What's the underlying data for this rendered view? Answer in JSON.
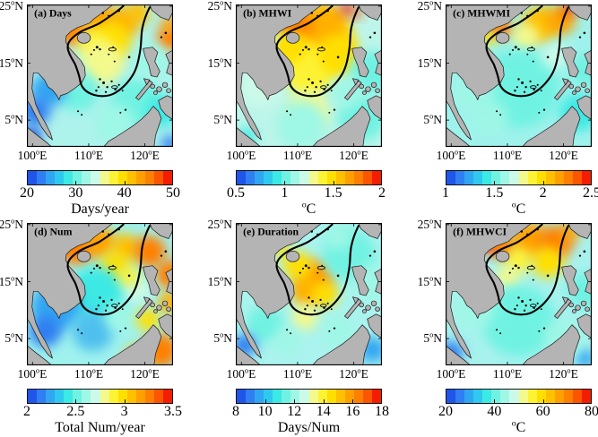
{
  "figure": {
    "background": "#ffffff",
    "land_color": "#b4b4b4",
    "coast_color": "#1c1c1c",
    "contour_color": "#000000"
  },
  "colormap": [
    "#1f55e8",
    "#2f7ef2",
    "#30a5f2",
    "#2fc9f0",
    "#3ce9e4",
    "#6ff2e2",
    "#9ff7e6",
    "#ccfae9",
    "#f4f98c",
    "#fdf335",
    "#ffdf00",
    "#ffc000",
    "#ffa000",
    "#ff7f00",
    "#fb5500",
    "#f51d00"
  ],
  "axes": {
    "lat_ticks": [
      "25°N",
      "15°N",
      "5°N"
    ],
    "lon_ticks": [
      "100°E",
      "110°E",
      "120°E"
    ]
  },
  "chart_data": [
    {
      "type": "heatmap",
      "id": "a",
      "title": "(a) Days",
      "cb_ticks": [
        "20",
        "30",
        "40",
        "50"
      ],
      "cb_range": [
        20,
        50
      ],
      "cb_label": "Days/year",
      "pattern": "High MHW days (40-50) in northern SCS near Hainan, south China coast and NE of Luzon; moderate (30-35) mid basin; low (20-28) in Gulf of Thailand, Malacca area and southeastern seas",
      "base": "#aef2ec",
      "blobs": [
        [
          62,
          34,
          24,
          "#ff8000"
        ],
        [
          100,
          22,
          24,
          "#ffa000"
        ],
        [
          132,
          26,
          22,
          "#ffb000"
        ],
        [
          152,
          12,
          16,
          "#ffc000"
        ],
        [
          115,
          52,
          28,
          "#ffdf00"
        ],
        [
          90,
          55,
          20,
          "#fdf335"
        ],
        [
          196,
          48,
          18,
          "#ff8000"
        ],
        [
          196,
          28,
          12,
          "#ffa000"
        ],
        [
          103,
          82,
          30,
          "#f4f98c"
        ],
        [
          70,
          122,
          28,
          "#6ff2e2"
        ],
        [
          30,
          120,
          24,
          "#30a5f2"
        ],
        [
          12,
          150,
          20,
          "#2f7ef2"
        ],
        [
          6,
          186,
          14,
          "#1f55e8"
        ],
        [
          150,
          140,
          36,
          "#6ff2e2"
        ],
        [
          185,
          150,
          22,
          "#3ce9e4"
        ],
        [
          196,
          196,
          12,
          "#2f7ef2"
        ],
        [
          120,
          168,
          28,
          "#9ff7e6"
        ],
        [
          60,
          95,
          18,
          "#9ff7e6"
        ],
        [
          170,
          80,
          25,
          "#9ff7e6"
        ]
      ]
    },
    {
      "type": "heatmap",
      "id": "b",
      "title": "(b) MHWI",
      "cb_ticks": [
        "0.5",
        "1",
        "1.5",
        "2"
      ],
      "cb_range": [
        0.5,
        2
      ],
      "cb_label": "°C",
      "pattern": "Mean intensity high (1.5-2 °C, red spots near Hainan and Taiwan Strait) across northern SCS; ~1.2-1.5 °C central basin; ~1 °C in southern shelf and seas east of the Philippines",
      "base": "#bdf5ea",
      "blobs": [
        [
          112,
          55,
          50,
          "#ffdf00"
        ],
        [
          120,
          32,
          32,
          "#ffb000"
        ],
        [
          85,
          28,
          20,
          "#ff7f00"
        ],
        [
          68,
          26,
          9,
          "#f51d00"
        ],
        [
          152,
          6,
          9,
          "#f51d00"
        ],
        [
          166,
          12,
          7,
          "#fb5500"
        ],
        [
          100,
          92,
          36,
          "#fdf335"
        ],
        [
          75,
          60,
          22,
          "#ffdf00"
        ],
        [
          140,
          70,
          28,
          "#ffdf00"
        ],
        [
          100,
          150,
          28,
          "#f4f98c"
        ],
        [
          90,
          170,
          35,
          "#9ff7e6"
        ],
        [
          35,
          115,
          28,
          "#ccfae9"
        ],
        [
          186,
          95,
          30,
          "#6ff2e2"
        ],
        [
          172,
          160,
          32,
          "#6ff2e2"
        ],
        [
          15,
          186,
          13,
          "#3ce9e4"
        ],
        [
          150,
          125,
          22,
          "#9ff7e6"
        ]
      ]
    },
    {
      "type": "heatmap",
      "id": "c",
      "title": "(c) MHWMI",
      "cb_ticks": [
        "1",
        "1.5",
        "2",
        "2.5"
      ],
      "cb_range": [
        1,
        2.5
      ],
      "cb_label": "°C",
      "pattern": "Maximum intensity mostly 1.4-1.7 °C (cyan); >2 °C band along the north: red patches in Gulf of Tonkin coast and near Taiwan, orange-yellow along NE slope",
      "base": "#9ff2ec",
      "blobs": [
        [
          65,
          27,
          11,
          "#f51d00"
        ],
        [
          78,
          34,
          14,
          "#ff7f00"
        ],
        [
          58,
          45,
          12,
          "#ffdf00"
        ],
        [
          130,
          28,
          26,
          "#ffc000"
        ],
        [
          158,
          22,
          20,
          "#ffa000"
        ],
        [
          170,
          5,
          9,
          "#f51d00"
        ],
        [
          110,
          45,
          18,
          "#f4f98c"
        ],
        [
          100,
          118,
          55,
          "#6ff2e2"
        ],
        [
          40,
          122,
          28,
          "#9ff7e6"
        ],
        [
          182,
          152,
          26,
          "#3ce9e4"
        ],
        [
          192,
          92,
          22,
          "#6ff2e2"
        ],
        [
          150,
          72,
          18,
          "#ccfae9"
        ],
        [
          60,
          160,
          25,
          "#9ff7e6"
        ]
      ]
    },
    {
      "type": "heatmap",
      "id": "d",
      "title": "(d) Num",
      "cb_ticks": [
        "2",
        "2.5",
        "3",
        "3.5"
      ],
      "cb_range": [
        2,
        3.5
      ],
      "cb_label": "Total Num/year",
      "pattern": "About 3-3.5 events/yr in northern SCS, east of Luzon and SE corner; 2-2.5 events/yr in western/central basin and Gulf of Thailand",
      "base": "#9ff2ee",
      "blobs": [
        [
          68,
          33,
          26,
          "#ff8000"
        ],
        [
          100,
          27,
          22,
          "#ffa000"
        ],
        [
          135,
          35,
          20,
          "#ffc000"
        ],
        [
          168,
          40,
          22,
          "#ff8000"
        ],
        [
          196,
          72,
          20,
          "#ff8000"
        ],
        [
          196,
          112,
          16,
          "#ffb000"
        ],
        [
          120,
          60,
          20,
          "#ffdf00"
        ],
        [
          95,
          102,
          40,
          "#3ce9e4"
        ],
        [
          40,
          118,
          34,
          "#30a5f2"
        ],
        [
          25,
          152,
          22,
          "#2f7ef2"
        ],
        [
          90,
          152,
          28,
          "#4fc0ee"
        ],
        [
          183,
          179,
          24,
          "#ff8000"
        ],
        [
          150,
          188,
          16,
          "#ffc000"
        ],
        [
          127,
          132,
          20,
          "#9ff7e6"
        ],
        [
          152,
          95,
          18,
          "#ccfae9"
        ],
        [
          166,
          136,
          16,
          "#ffdf00"
        ],
        [
          140,
          75,
          14,
          "#fdf335"
        ]
      ]
    },
    {
      "type": "heatmap",
      "id": "e",
      "title": "(e) Duration",
      "cb_ticks": [
        "8",
        "10",
        "12",
        "14",
        "16",
        "18"
      ],
      "cb_range": [
        8,
        18
      ],
      "cb_label": "Days/Num",
      "pattern": "Longest durations (14-16 days) in central SCS off Vietnam; 10-12 days over most shelves; shortest (8-10 days) in far SW and SE corners",
      "base": "#aaf3ee",
      "blobs": [
        [
          108,
          78,
          26,
          "#ff9800"
        ],
        [
          98,
          96,
          22,
          "#ffb000"
        ],
        [
          85,
          60,
          20,
          "#ffdf00"
        ],
        [
          122,
          100,
          18,
          "#ffdf00"
        ],
        [
          65,
          40,
          11,
          "#ffdf00"
        ],
        [
          95,
          132,
          18,
          "#f4f98c"
        ],
        [
          50,
          100,
          16,
          "#f4f98c"
        ],
        [
          155,
          45,
          36,
          "#6ff2e2"
        ],
        [
          186,
          85,
          25,
          "#9ff7e6"
        ],
        [
          40,
          142,
          25,
          "#6ff2e2"
        ],
        [
          12,
          172,
          16,
          "#2f7ef2"
        ],
        [
          187,
          178,
          18,
          "#30a5f2"
        ],
        [
          140,
          152,
          22,
          "#9ff7e6"
        ],
        [
          70,
          166,
          18,
          "#9ff7e6"
        ],
        [
          140,
          20,
          18,
          "#9ff7e6"
        ]
      ]
    },
    {
      "type": "heatmap",
      "id": "f",
      "title": "(f) MHWCI",
      "cb_ticks": [
        "20",
        "40",
        "60",
        "80"
      ],
      "cb_range": [
        20,
        80
      ],
      "cb_label": "°C",
      "pattern": "Cumulative intensity >70 °C (red) around Hainan / Gulf of Tonkin, 55-65 °C along northern SCS, ~40 °C central, 20-35 °C in southern and far SW/SE waters",
      "base": "#a8f2ee",
      "blobs": [
        [
          62,
          30,
          13,
          "#f51d00"
        ],
        [
          80,
          34,
          18,
          "#ff7f00"
        ],
        [
          115,
          25,
          26,
          "#ffa000"
        ],
        [
          150,
          28,
          24,
          "#ff8000"
        ],
        [
          170,
          14,
          13,
          "#ffa000"
        ],
        [
          140,
          55,
          22,
          "#ffdf00"
        ],
        [
          100,
          52,
          18,
          "#fdf335"
        ],
        [
          85,
          76,
          16,
          "#f4f98c"
        ],
        [
          100,
          138,
          50,
          "#6ff2e2"
        ],
        [
          40,
          120,
          28,
          "#9ff7e6"
        ],
        [
          192,
          95,
          25,
          "#6ff2e2"
        ],
        [
          8,
          182,
          16,
          "#2f7ef2"
        ],
        [
          191,
          190,
          13,
          "#30a5f2"
        ],
        [
          162,
          162,
          26,
          "#9ff7e6"
        ]
      ]
    }
  ]
}
